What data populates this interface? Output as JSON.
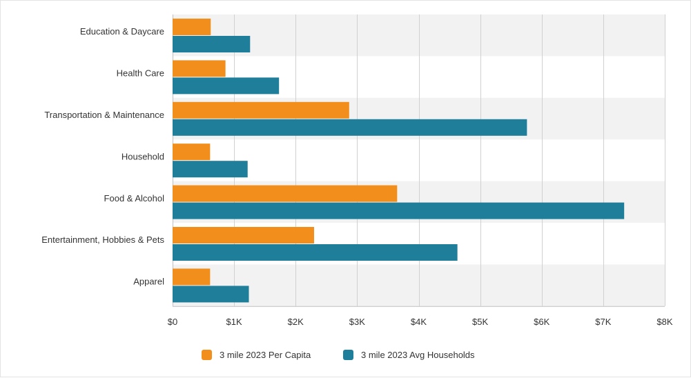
{
  "chart_data": {
    "type": "bar",
    "orientation": "horizontal",
    "categories": [
      "Education & Daycare",
      "Health Care",
      "Transportation & Maintenance",
      "Household",
      "Food & Alcohol",
      "Entertainment, Hobbies & Pets",
      "Apparel"
    ],
    "series": [
      {
        "name": "3 mile 2023 Per Capita",
        "color": "#f28e1c",
        "values": [
          620,
          860,
          2870,
          610,
          3650,
          2300,
          610
        ]
      },
      {
        "name": "3 mile 2023 Avg Households",
        "color": "#1f7f9a",
        "values": [
          1260,
          1730,
          5760,
          1220,
          7340,
          4630,
          1240
        ]
      }
    ],
    "xlim": [
      0,
      8000
    ],
    "x_ticks": [
      {
        "value": 0,
        "label": "$0"
      },
      {
        "value": 1000,
        "label": "$1K"
      },
      {
        "value": 2000,
        "label": "$2K"
      },
      {
        "value": 3000,
        "label": "$3K"
      },
      {
        "value": 4000,
        "label": "$4K"
      },
      {
        "value": 5000,
        "label": "$5K"
      },
      {
        "value": 6000,
        "label": "$6K"
      },
      {
        "value": 7000,
        "label": "$7K"
      },
      {
        "value": 8000,
        "label": "$8K"
      }
    ],
    "grid": true,
    "band_color": "#f2f2f2",
    "grid_color": "#d0d0d0",
    "legend_position": "bottom-center"
  }
}
